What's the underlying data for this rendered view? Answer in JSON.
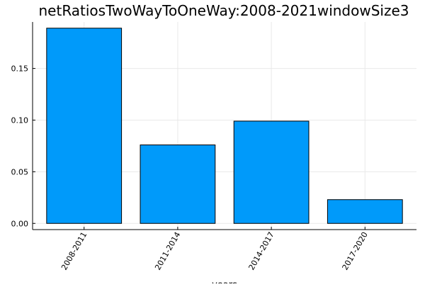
{
  "chart_data": {
    "type": "bar",
    "title": "netRatiosTwoWayToOneWay:2008-2021windowSize3",
    "xlabel": "years",
    "ylabel": "",
    "categories": [
      "2008-2011",
      "2011-2014",
      "2014-2017",
      "2017-2020"
    ],
    "values": [
      0.189,
      0.076,
      0.099,
      0.023
    ],
    "yticks": [
      0.0,
      0.05,
      0.1,
      0.15
    ],
    "ytick_labels": [
      "0.00",
      "0.05",
      "0.10",
      "0.15"
    ],
    "ylim": [
      -0.006,
      0.195
    ],
    "grid": true,
    "legend": "none",
    "colors": {
      "bar": "#009AFA",
      "bar_edge": "#000000",
      "grid": "#e9e9e9",
      "axis": "#000000"
    }
  }
}
